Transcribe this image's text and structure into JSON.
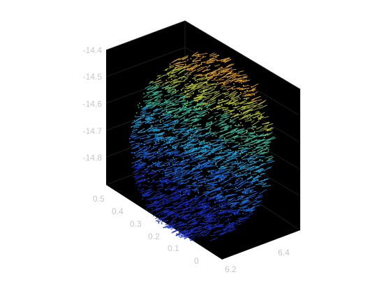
{
  "chart_data": {
    "type": "quiver3d",
    "background": "#000000",
    "gridlines": true,
    "z_axis": {
      "ticks": [
        -14.4,
        -14.5,
        -14.6,
        -14.7,
        -14.8
      ],
      "labels": [
        "-14.4",
        "-14.5",
        "-14.6",
        "-14.7",
        "-14.8"
      ],
      "range": [
        -14.85,
        -14.4
      ]
    },
    "y_axis": {
      "ticks": [
        0.5,
        0.4,
        0.3,
        0.2,
        0.1,
        0
      ],
      "labels": [
        "0.5",
        "0.4",
        "0.3",
        "0.2",
        "0.1",
        "0"
      ],
      "range": [
        0,
        0.5
      ]
    },
    "x_axis": {
      "ticks": [
        6.2,
        6.4
      ],
      "labels": [
        "6.2",
        "6.4"
      ],
      "range": [
        6.2,
        6.5
      ]
    },
    "colormap": [
      "#1a2fbf",
      "#1c6be0",
      "#24a4e0",
      "#3fbfa0",
      "#b8c23a",
      "#e6a92e"
    ]
  }
}
